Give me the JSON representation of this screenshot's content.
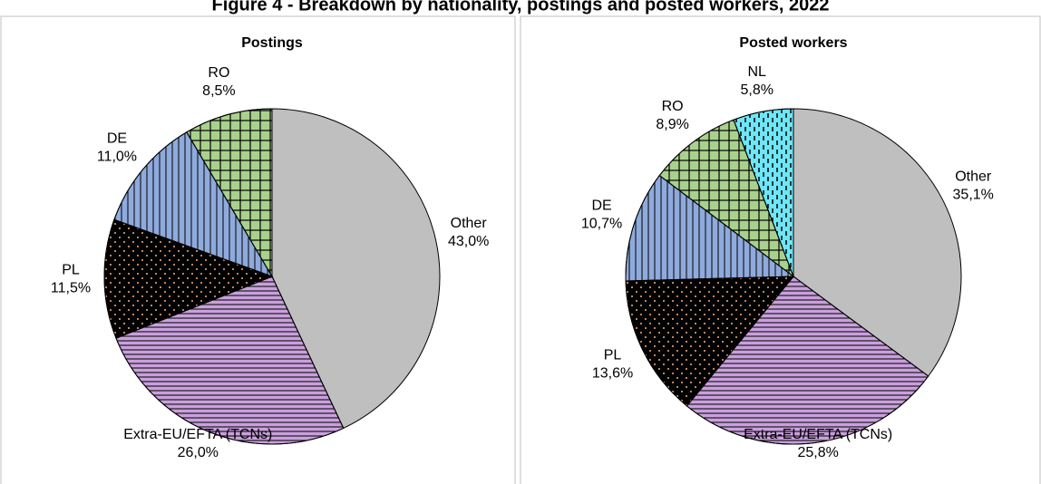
{
  "title": "Figure 4 - Breakdown by nationality, postings and posted workers, 2022",
  "chart_data": [
    {
      "type": "pie",
      "title": "Postings",
      "categories": [
        "Other",
        "Extra-EU/EFTA (TCNs)",
        "PL",
        "DE",
        "RO"
      ],
      "values": [
        43.0,
        26.0,
        11.5,
        11.0,
        8.5
      ],
      "value_labels": [
        "43,0%",
        "26,0%",
        "11,5%",
        "11,0%",
        "8,5%"
      ],
      "colors": [
        "#bfbfbf",
        "#c9a0dc",
        "#000000",
        "#8faadc",
        "#a9d18e"
      ]
    },
    {
      "type": "pie",
      "title": "Posted workers",
      "categories": [
        "Other",
        "Extra-EU/EFTA (TCNs)",
        "PL",
        "DE",
        "RO",
        "NL"
      ],
      "values": [
        35.1,
        25.8,
        13.6,
        10.7,
        8.9,
        5.8
      ],
      "value_labels": [
        "35,1%",
        "25,8%",
        "13,6%",
        "10,7%",
        "8,9%",
        "5,8%"
      ],
      "colors": [
        "#bfbfbf",
        "#c9a0dc",
        "#000000",
        "#8faadc",
        "#a9d18e",
        "#6fe6f6"
      ]
    }
  ]
}
